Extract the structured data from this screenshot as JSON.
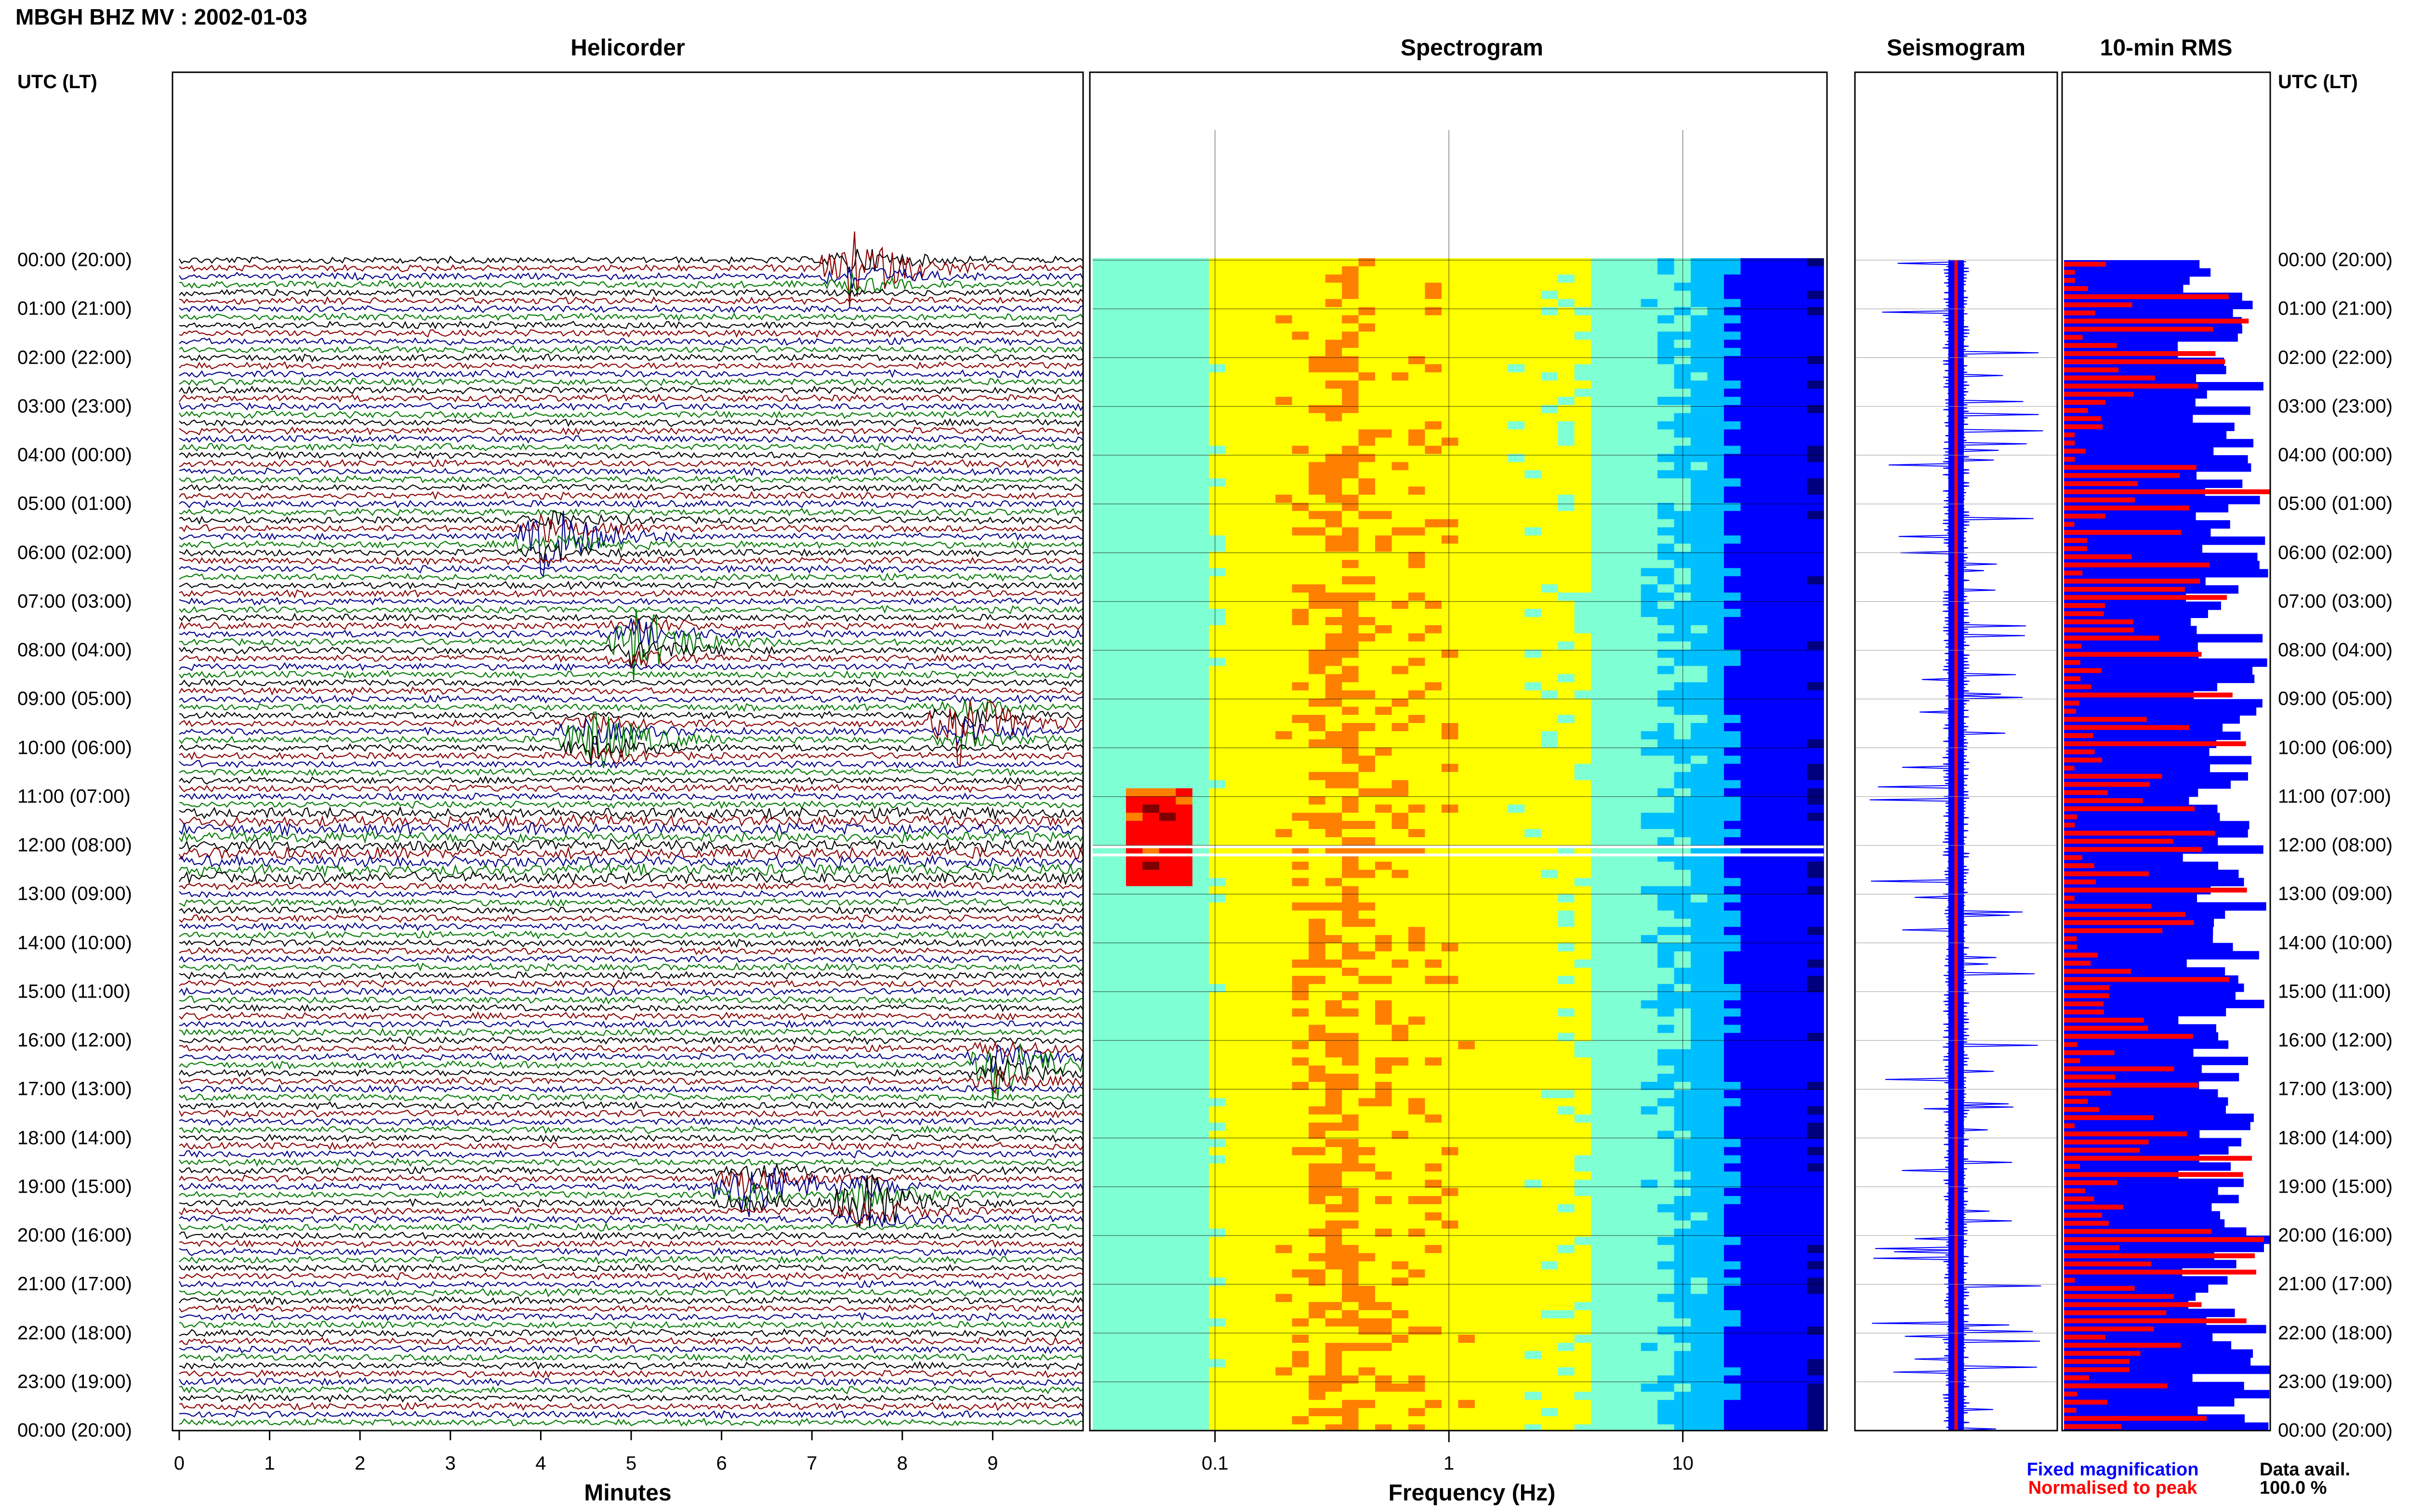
{
  "header": {
    "title": "MBGH BHZ MV : 2002-01-03",
    "time_axis_label": "UTC (LT)"
  },
  "panels": {
    "helicorder": "Helicorder",
    "spectrogram": "Spectrogram",
    "seismogram": "Seismogram",
    "rms": "10-min RMS"
  },
  "hour_labels": [
    "00:00 (20:00)",
    "01:00 (21:00)",
    "02:00 (22:00)",
    "03:00 (23:00)",
    "04:00 (00:00)",
    "05:00 (01:00)",
    "06:00 (02:00)",
    "07:00 (03:00)",
    "08:00 (04:00)",
    "09:00 (05:00)",
    "10:00 (06:00)",
    "11:00 (07:00)",
    "12:00 (08:00)",
    "13:00 (09:00)",
    "14:00 (10:00)",
    "15:00 (11:00)",
    "16:00 (12:00)",
    "17:00 (13:00)",
    "18:00 (14:00)",
    "19:00 (15:00)",
    "20:00 (16:00)",
    "21:00 (17:00)",
    "22:00 (18:00)",
    "23:00 (19:00)",
    "00:00 (20:00)"
  ],
  "helicorder_axis": {
    "label": "Minutes",
    "ticks": [
      "0",
      "1",
      "2",
      "3",
      "4",
      "5",
      "6",
      "7",
      "8",
      "9"
    ]
  },
  "spectrogram_axis": {
    "label": "Frequency (Hz)",
    "ticks": [
      "0.1",
      "1",
      "10"
    ]
  },
  "legend": {
    "fixed": "Fixed magnification",
    "normalised": "Normalised to peak",
    "fixed_color": "#0000ff",
    "normalised_color": "#ff0000"
  },
  "data_availability": {
    "label": "Data avail.",
    "value": "100.0 %"
  },
  "colors": {
    "trace_cycle": [
      "#000000",
      "#8b0000",
      "#00008b",
      "#007a00"
    ],
    "spectrogram_scale": [
      "#00007f",
      "#0000ff",
      "#00bfff",
      "#7fffd4",
      "#ffff00",
      "#ff7f00",
      "#ff0000",
      "#7f0000"
    ],
    "rms_fixed": "#0000ff",
    "rms_normalised": "#ff0000"
  },
  "chart_data": [
    {
      "type": "line",
      "panel": "Helicorder",
      "xlabel": "Minutes",
      "ylabel": "UTC (LT)",
      "xlim": [
        0,
        10
      ],
      "rows_per_hour": 6,
      "hours": 24,
      "notable_events": [
        {
          "hour": 0,
          "minute": 7.4,
          "color": "green"
        },
        {
          "hour": 5,
          "minute": 4.0,
          "color": "green"
        },
        {
          "hour": 7,
          "minute": 5.0,
          "color": "darkred"
        },
        {
          "hour": 9,
          "minute": 4.5,
          "color": "darkred"
        },
        {
          "hour": 9,
          "minute": 8.6,
          "color": "green"
        },
        {
          "hour": 16,
          "minute": 9.0,
          "color": "green"
        },
        {
          "hour": 19,
          "minute": 6.2,
          "color": "darkred"
        },
        {
          "hour": 19,
          "minute": 7.5,
          "color": "green"
        }
      ]
    },
    {
      "type": "heatmap",
      "panel": "Spectrogram",
      "xlabel": "Frequency (Hz)",
      "x_scale": "log",
      "xlim": [
        0.03,
        40
      ],
      "ylabel": "UTC (LT)",
      "features": [
        {
          "hour_start": 10.8,
          "hour_end": 12.8,
          "f_low": 0.04,
          "f_high": 0.08,
          "level": "high"
        }
      ]
    },
    {
      "type": "bar",
      "panel": "10-min RMS",
      "orientation": "horizontal",
      "categories_count": 144,
      "series": [
        {
          "name": "Fixed magnification",
          "values_relative_range": [
            0.55,
            1.0
          ]
        },
        {
          "name": "Normalised to peak",
          "values_relative_range": [
            0.05,
            1.0
          ]
        }
      ]
    }
  ]
}
